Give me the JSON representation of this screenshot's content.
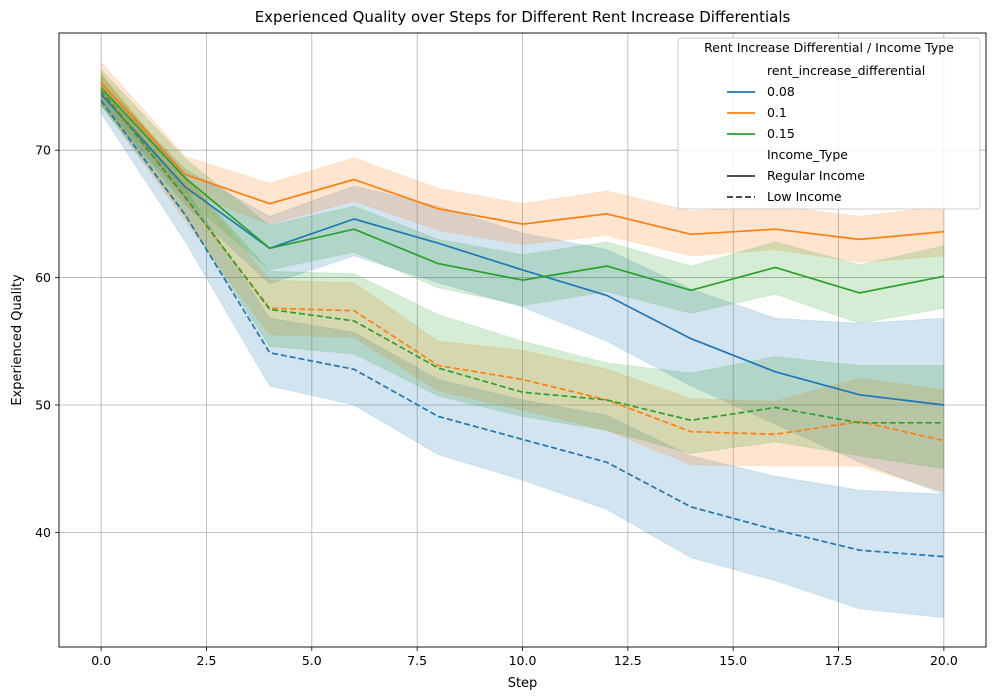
{
  "chart_data": {
    "type": "line",
    "title": "Experienced Quality over Steps for Different Rent Increase Differentials",
    "xlabel": "Step",
    "ylabel": "Experienced Quality",
    "xlim": [
      -1.0,
      21.0
    ],
    "ylim": [
      31.0,
      79.2
    ],
    "x_ticks": [
      0.0,
      2.5,
      5.0,
      7.5,
      10.0,
      12.5,
      15.0,
      17.5,
      20.0
    ],
    "x_tick_labels": [
      "0.0",
      "2.5",
      "5.0",
      "7.5",
      "10.0",
      "12.5",
      "15.0",
      "17.5",
      "20.0"
    ],
    "y_ticks": [
      40,
      50,
      60,
      70
    ],
    "y_tick_labels": [
      "40",
      "50",
      "60",
      "70"
    ],
    "grid": true,
    "legend": {
      "title": "Rent Increase Differential / Income Type",
      "placement": "top-right",
      "hue_header": "rent_increase_differential",
      "hue_entries": [
        {
          "label": "0.08",
          "color": "#1f77b4"
        },
        {
          "label": "0.1",
          "color": "#ff7f0e"
        },
        {
          "label": "0.15",
          "color": "#2ca02c"
        }
      ],
      "style_header": "Income_Type",
      "style_entries": [
        {
          "label": "Regular Income",
          "dash": "solid"
        },
        {
          "label": "Low Income",
          "dash": "dashed"
        }
      ]
    },
    "x": [
      0,
      2,
      4,
      6,
      8,
      10,
      12,
      14,
      16,
      18,
      20
    ],
    "series": [
      {
        "name": "0.08",
        "income": "Regular Income",
        "color": "#1f77b4",
        "dash": "solid",
        "values": [
          74.4,
          67.1,
          62.3,
          64.6,
          62.7,
          60.6,
          58.6,
          55.2,
          52.6,
          50.8,
          50.0
        ],
        "ci_low": [
          73.6,
          65.7,
          59.5,
          61.7,
          59.6,
          57.7,
          55.0,
          51.5,
          48.5,
          45.5,
          43.0
        ],
        "ci_high": [
          75.3,
          68.5,
          64.8,
          67.2,
          65.6,
          63.5,
          62.2,
          59.1,
          56.8,
          56.4,
          56.8
        ]
      },
      {
        "name": "0.1",
        "income": "Regular Income",
        "color": "#ff7f0e",
        "dash": "solid",
        "values": [
          75.3,
          68.1,
          65.8,
          67.7,
          65.4,
          64.2,
          65.0,
          63.4,
          63.8,
          63.0,
          63.6
        ],
        "ci_low": [
          73.8,
          66.7,
          64.2,
          66.0,
          63.7,
          62.6,
          63.3,
          61.7,
          62.2,
          61.2,
          61.7
        ],
        "ci_high": [
          76.9,
          69.5,
          67.4,
          69.4,
          67.0,
          65.8,
          66.8,
          65.2,
          65.6,
          64.8,
          65.6
        ]
      },
      {
        "name": "0.15",
        "income": "Regular Income",
        "color": "#2ca02c",
        "dash": "solid",
        "values": [
          74.9,
          67.8,
          62.3,
          63.8,
          61.1,
          59.8,
          60.9,
          59.0,
          60.8,
          58.8,
          60.1
        ],
        "ci_low": [
          73.5,
          66.2,
          60.6,
          62.0,
          59.2,
          57.8,
          58.9,
          57.2,
          58.7,
          56.4,
          57.6
        ],
        "ci_high": [
          76.3,
          69.3,
          64.1,
          65.6,
          63.0,
          61.8,
          62.8,
          60.9,
          62.8,
          61.0,
          62.5
        ]
      },
      {
        "name": "0.08",
        "income": "Low Income",
        "color": "#1f77b4",
        "dash": "dashed",
        "values": [
          73.9,
          64.9,
          54.1,
          52.8,
          49.1,
          47.3,
          45.5,
          42.0,
          40.2,
          38.6,
          38.1
        ],
        "ci_low": [
          72.9,
          62.8,
          51.5,
          50.0,
          46.1,
          44.1,
          41.8,
          38.0,
          36.2,
          34.0,
          33.3
        ],
        "ci_high": [
          74.9,
          67.0,
          56.8,
          55.7,
          52.0,
          50.4,
          49.2,
          46.0,
          44.4,
          43.3,
          43.0
        ]
      },
      {
        "name": "0.1",
        "income": "Low Income",
        "color": "#ff7f0e",
        "dash": "dashed",
        "values": [
          74.8,
          66.2,
          57.6,
          57.4,
          53.1,
          52.0,
          50.4,
          47.9,
          47.7,
          48.7,
          47.2
        ],
        "ci_low": [
          73.6,
          64.4,
          55.5,
          55.3,
          51.1,
          49.6,
          48.0,
          45.3,
          45.2,
          45.2,
          43.2
        ],
        "ci_high": [
          76.0,
          68.0,
          59.8,
          59.6,
          55.0,
          54.3,
          52.8,
          50.5,
          50.3,
          52.1,
          51.2
        ]
      },
      {
        "name": "0.15",
        "income": "Low Income",
        "color": "#2ca02c",
        "dash": "dashed",
        "values": [
          74.7,
          66.3,
          57.5,
          56.6,
          52.9,
          51.0,
          50.4,
          48.8,
          49.8,
          48.6,
          48.6
        ],
        "ci_low": [
          73.5,
          64.8,
          54.6,
          54.0,
          50.7,
          49.1,
          48.0,
          46.2,
          47.1,
          46.0,
          45.0
        ],
        "ci_high": [
          75.9,
          67.9,
          60.5,
          60.3,
          57.1,
          55.0,
          53.3,
          52.5,
          53.8,
          53.1,
          53.1
        ]
      }
    ]
  }
}
